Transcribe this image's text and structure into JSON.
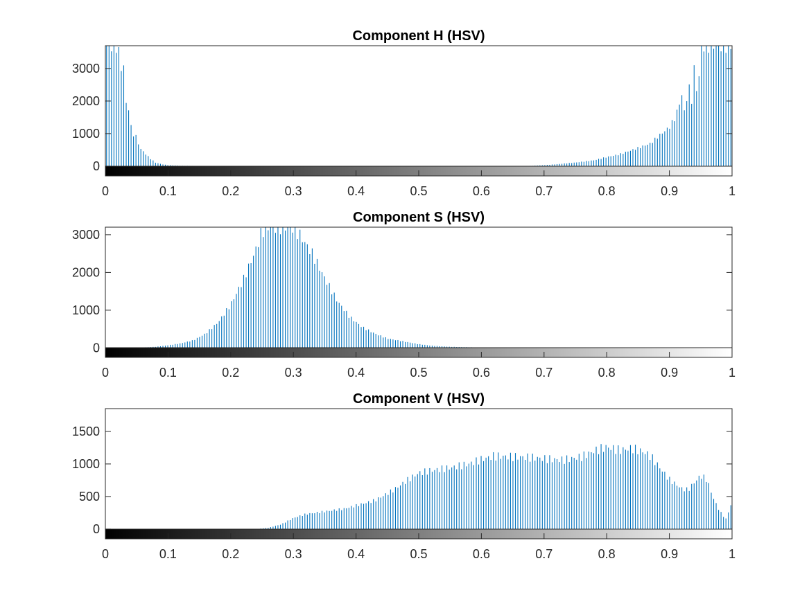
{
  "colors": {
    "bar": "#0072BD",
    "axis": "#262626"
  },
  "chart_data": [
    {
      "type": "bar",
      "title": "Component H (HSV)",
      "xlim": [
        0,
        1
      ],
      "ylim": [
        -300,
        3700
      ],
      "xticks": [
        0,
        0.1,
        0.2,
        0.3,
        0.4,
        0.5,
        0.6,
        0.7,
        0.8,
        0.9,
        1
      ],
      "xtick_labels": [
        "0",
        "0.1",
        "0.2",
        "0.3",
        "0.4",
        "0.5",
        "0.6",
        "0.7",
        "0.8",
        "0.9",
        "1"
      ],
      "yticks": [
        0,
        1000,
        2000,
        3000
      ],
      "ytick_labels": [
        "0",
        "1000",
        "2000",
        "3000"
      ],
      "colorbar": "gray",
      "bins": 256,
      "profile": [
        [
          0,
          3700
        ],
        [
          0.005,
          3700
        ],
        [
          0.012,
          3700
        ],
        [
          0.02,
          3700
        ],
        [
          0.025,
          3000
        ],
        [
          0.03,
          3100
        ],
        [
          0.034,
          1600
        ],
        [
          0.038,
          1850
        ],
        [
          0.042,
          980
        ],
        [
          0.048,
          960
        ],
        [
          0.055,
          560
        ],
        [
          0.062,
          420
        ],
        [
          0.07,
          260
        ],
        [
          0.08,
          110
        ],
        [
          0.09,
          60
        ],
        [
          0.1,
          30
        ],
        [
          0.12,
          12
        ],
        [
          0.2,
          0
        ],
        [
          0.6,
          0
        ],
        [
          0.68,
          10
        ],
        [
          0.7,
          30
        ],
        [
          0.72,
          60
        ],
        [
          0.75,
          110
        ],
        [
          0.78,
          180
        ],
        [
          0.8,
          280
        ],
        [
          0.82,
          360
        ],
        [
          0.85,
          560
        ],
        [
          0.87,
          700
        ],
        [
          0.88,
          880
        ],
        [
          0.9,
          1200
        ],
        [
          0.91,
          1520
        ],
        [
          0.92,
          2200
        ],
        [
          0.925,
          1500
        ],
        [
          0.93,
          2600
        ],
        [
          0.935,
          1900
        ],
        [
          0.94,
          3100
        ],
        [
          0.945,
          2000
        ],
        [
          0.95,
          3700
        ],
        [
          0.96,
          3700
        ],
        [
          0.97,
          3700
        ],
        [
          0.98,
          3700
        ],
        [
          0.99,
          3700
        ],
        [
          1,
          3700
        ]
      ]
    },
    {
      "type": "bar",
      "title": "Component S (HSV)",
      "xlim": [
        0,
        1
      ],
      "ylim": [
        -250,
        3200
      ],
      "xticks": [
        0,
        0.1,
        0.2,
        0.3,
        0.4,
        0.5,
        0.6,
        0.7,
        0.8,
        0.9,
        1
      ],
      "xtick_labels": [
        "0",
        "0.1",
        "0.2",
        "0.3",
        "0.4",
        "0.5",
        "0.6",
        "0.7",
        "0.8",
        "0.9",
        "1"
      ],
      "yticks": [
        0,
        1000,
        2000,
        3000
      ],
      "ytick_labels": [
        "0",
        "1000",
        "2000",
        "3000"
      ],
      "colorbar": "gray",
      "bins": 256,
      "profile": [
        [
          0,
          0
        ],
        [
          0.05,
          5
        ],
        [
          0.08,
          30
        ],
        [
          0.1,
          70
        ],
        [
          0.12,
          120
        ],
        [
          0.14,
          200
        ],
        [
          0.16,
          380
        ],
        [
          0.18,
          680
        ],
        [
          0.2,
          1150
        ],
        [
          0.22,
          1800
        ],
        [
          0.24,
          2600
        ],
        [
          0.25,
          3100
        ],
        [
          0.26,
          3200
        ],
        [
          0.3,
          3200
        ],
        [
          0.31,
          3000
        ],
        [
          0.33,
          2500
        ],
        [
          0.35,
          1850
        ],
        [
          0.37,
          1250
        ],
        [
          0.39,
          820
        ],
        [
          0.41,
          550
        ],
        [
          0.43,
          380
        ],
        [
          0.45,
          250
        ],
        [
          0.48,
          160
        ],
        [
          0.5,
          100
        ],
        [
          0.52,
          60
        ],
        [
          0.55,
          30
        ],
        [
          0.6,
          12
        ],
        [
          0.65,
          4
        ],
        [
          0.7,
          0
        ],
        [
          1,
          0
        ]
      ]
    },
    {
      "type": "bar",
      "title": "Component V (HSV)",
      "xlim": [
        0,
        1
      ],
      "ylim": [
        -150,
        1850
      ],
      "xticks": [
        0,
        0.1,
        0.2,
        0.3,
        0.4,
        0.5,
        0.6,
        0.7,
        0.8,
        0.9,
        1
      ],
      "xtick_labels": [
        "0",
        "0.1",
        "0.2",
        "0.3",
        "0.4",
        "0.5",
        "0.6",
        "0.7",
        "0.8",
        "0.9",
        "1"
      ],
      "yticks": [
        0,
        500,
        1000,
        1500
      ],
      "ytick_labels": [
        "0",
        "500",
        "1000",
        "1500"
      ],
      "colorbar": "gray",
      "bins": 256,
      "profile": [
        [
          0,
          0
        ],
        [
          0.24,
          0
        ],
        [
          0.26,
          20
        ],
        [
          0.28,
          70
        ],
        [
          0.3,
          170
        ],
        [
          0.32,
          230
        ],
        [
          0.35,
          270
        ],
        [
          0.38,
          310
        ],
        [
          0.4,
          360
        ],
        [
          0.43,
          440
        ],
        [
          0.46,
          600
        ],
        [
          0.48,
          740
        ],
        [
          0.5,
          860
        ],
        [
          0.52,
          900
        ],
        [
          0.55,
          940
        ],
        [
          0.58,
          1000
        ],
        [
          0.6,
          1070
        ],
        [
          0.62,
          1120
        ],
        [
          0.65,
          1110
        ],
        [
          0.68,
          1100
        ],
        [
          0.7,
          1080
        ],
        [
          0.73,
          1060
        ],
        [
          0.76,
          1110
        ],
        [
          0.78,
          1200
        ],
        [
          0.8,
          1260
        ],
        [
          0.82,
          1210
        ],
        [
          0.84,
          1240
        ],
        [
          0.86,
          1180
        ],
        [
          0.87,
          1120
        ],
        [
          0.88,
          1000
        ],
        [
          0.9,
          760
        ],
        [
          0.92,
          620
        ],
        [
          0.93,
          600
        ],
        [
          0.94,
          720
        ],
        [
          0.95,
          820
        ],
        [
          0.96,
          760
        ],
        [
          0.97,
          480
        ],
        [
          0.98,
          280
        ],
        [
          0.99,
          150
        ],
        [
          1,
          420
        ]
      ]
    }
  ]
}
